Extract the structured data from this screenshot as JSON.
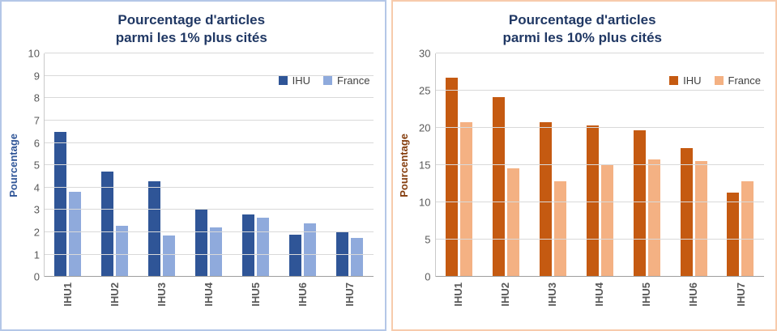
{
  "chart_data": [
    {
      "type": "bar",
      "title": "Pourcentage d'articles parmi les 1% plus cités",
      "title_lines": [
        "Pourcentage d'articles",
        "parmi les 1% plus cités"
      ],
      "xlabel": "",
      "ylabel": "Pourcentage",
      "ylim": [
        0,
        10
      ],
      "ytick_interval": 1,
      "grid": true,
      "legend_position": "top-right",
      "categories": [
        "IHU1",
        "IHU2",
        "IHU3",
        "IHU4",
        "IHU5",
        "IHU6",
        "IHU7"
      ],
      "series": [
        {
          "name": "IHU",
          "color": "#2F5597",
          "values": [
            6.5,
            4.7,
            4.3,
            3.0,
            2.8,
            1.9,
            2.0
          ]
        },
        {
          "name": "France",
          "color": "#8FAADC",
          "values": [
            3.8,
            2.3,
            1.85,
            2.2,
            2.65,
            2.4,
            1.75
          ]
        }
      ],
      "colors": {
        "border": "#B4C7E7",
        "title": "#203864",
        "ylabel": "#2F5597",
        "tick_labels": "#595959",
        "gridline": "#D9D9D9"
      }
    },
    {
      "type": "bar",
      "title": "Pourcentage d'articles parmi les 10% plus cités",
      "title_lines": [
        "Pourcentage d'articles",
        "parmi les 10% plus cités"
      ],
      "xlabel": "",
      "ylabel": "Pourcentage",
      "ylim": [
        0,
        30
      ],
      "ytick_interval": 5,
      "grid": true,
      "legend_position": "top-right",
      "categories": [
        "IHU1",
        "IHU2",
        "IHU3",
        "IHU4",
        "IHU5",
        "IHU6",
        "IHU7"
      ],
      "series": [
        {
          "name": "IHU",
          "color": "#C55A11",
          "values": [
            26.8,
            24.1,
            20.8,
            20.3,
            19.7,
            17.3,
            11.3
          ]
        },
        {
          "name": "France",
          "color": "#F4B183",
          "values": [
            20.8,
            14.6,
            12.9,
            15.1,
            15.8,
            15.6,
            12.8
          ]
        }
      ],
      "colors": {
        "border": "#F7CBAC",
        "title": "#203864",
        "ylabel": "#843C0C",
        "tick_labels": "#595959",
        "gridline": "#D9D9D9"
      }
    }
  ]
}
